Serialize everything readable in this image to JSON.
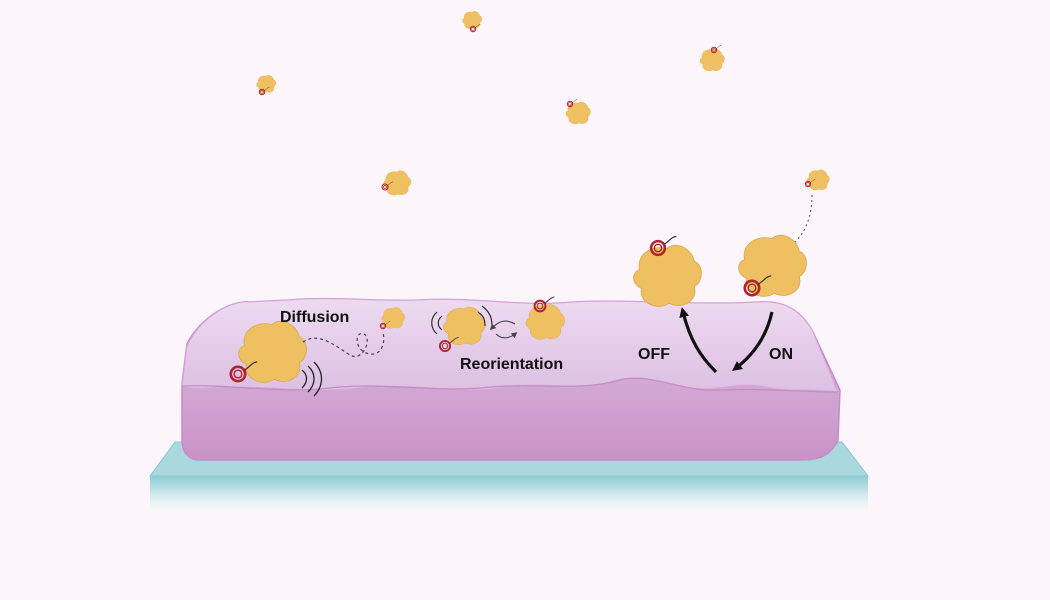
{
  "labels": {
    "diffusion": "Diffusion",
    "reorientation": "Reorientation",
    "off": "OFF",
    "on": "ON"
  },
  "colors": {
    "background": "#fcf5fb",
    "substrate_top": "#b5dde3",
    "substrate_edge": "#7fc2cc",
    "film_top": "#e4cdea",
    "film_side": "#d9b3da",
    "film_edge": "#c47fc0",
    "protein": "#efc061",
    "protein_outline": "#caa04b",
    "ligand": "#c0262e",
    "arrow": "#111111"
  },
  "icons": {
    "protein": "protein-blob-icon",
    "ligand": "ligand-ring-icon",
    "vibration": "vibration-lines-icon",
    "path": "diffusion-path-icon",
    "arrow": "curved-arrow-icon"
  }
}
